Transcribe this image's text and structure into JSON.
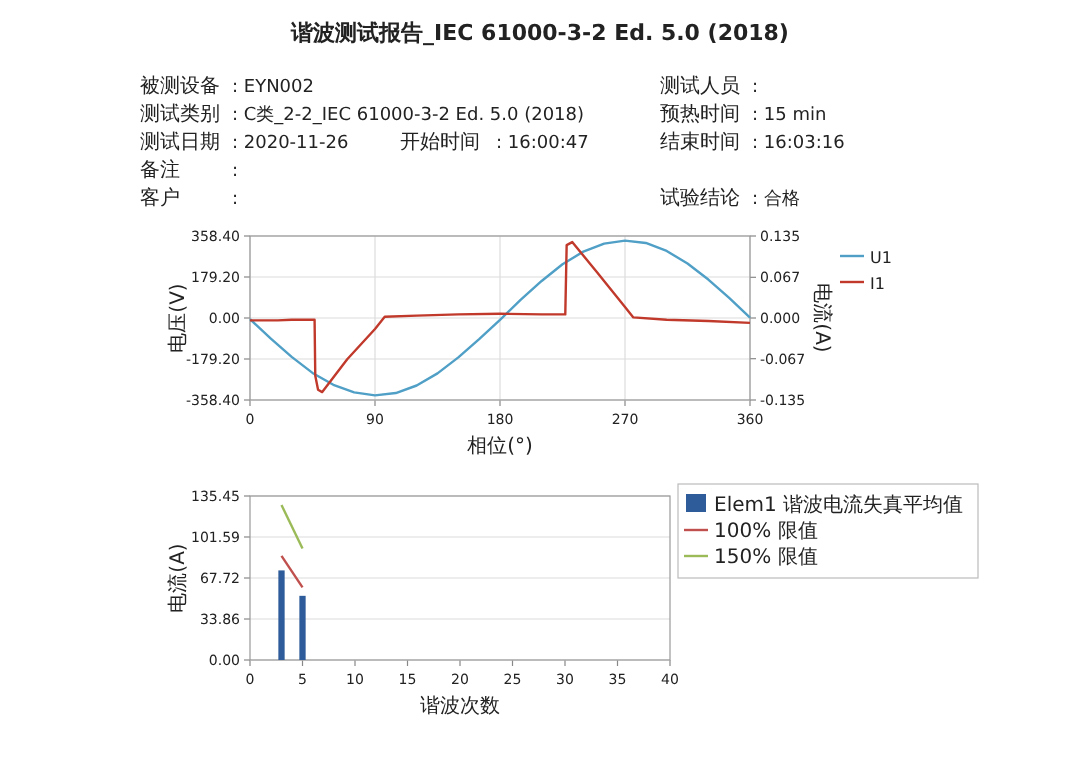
{
  "chart_data": [
    {
      "type": "other",
      "title": "谐波测试报告_IEC 61000-3-2 Ed. 5.0 (2018)",
      "annotations": [
        "被测设备",
        ": EYN002",
        "测试人员",
        ":",
        "测试类别",
        ": C类_2-2_IEC 61000-3-2 Ed. 5.0 (2018)",
        "预热时间",
        ": 15 min",
        "测试日期",
        ": 2020-11-26",
        "开始时间",
        ": 16:00:47",
        "结束时间",
        ": 16:03:16",
        "备注",
        ":",
        "客户",
        ":",
        "试验结论",
        ": 合格"
      ]
    },
    {
      "type": "line",
      "xlabel": "相位(°)",
      "ylabel": "电压(V)",
      "y2label": "电流(A)",
      "xlim": [
        0,
        360
      ],
      "xticks": [
        0,
        90,
        180,
        270,
        360
      ],
      "ylim": [
        -358.4,
        358.4
      ],
      "yticks": [
        {
          "value": -358.4,
          "label": "-358.40"
        },
        {
          "value": -179.2,
          "label": "-179.20"
        },
        {
          "value": 0,
          "label": "0.00"
        },
        {
          "value": 179.2,
          "label": "179.20"
        },
        {
          "value": 358.4,
          "label": "358.40"
        }
      ],
      "y2lim": [
        -0.135,
        0.135
      ],
      "y2ticks": [
        -0.135,
        -0.067,
        {
          "value": 0,
          "label": "0.000"
        },
        0.067,
        0.135
      ],
      "grid": true,
      "legend": "top right",
      "series": [
        {
          "name": "U1",
          "color": "#4f9fc6",
          "x": [
            0,
            15,
            30,
            45,
            60,
            75,
            90,
            105,
            120,
            135,
            150,
            165,
            180,
            195,
            210,
            225,
            240,
            255,
            270,
            285,
            300,
            315,
            330,
            345,
            360
          ],
          "values": [
            -5,
            -90,
            -170,
            -240,
            -292,
            -325,
            -338,
            -328,
            -295,
            -242,
            -172,
            -92,
            -8,
            80,
            162,
            235,
            290,
            325,
            338,
            328,
            293,
            238,
            168,
            88,
            2
          ]
        },
        {
          "name": "I1",
          "color": "#c0392b",
          "axis": "y2",
          "x": [
            0,
            10,
            20,
            30,
            40,
            46.5,
            47,
            49,
            52,
            70,
            90,
            97,
            120,
            150,
            180,
            210,
            227,
            228,
            232,
            250,
            270,
            276,
            300,
            330,
            360
          ],
          "values": [
            -0.004,
            -0.004,
            -0.004,
            -0.003,
            -0.003,
            -0.003,
            -0.095,
            -0.118,
            -0.122,
            -0.068,
            -0.018,
            0.002,
            0.004,
            0.006,
            0.007,
            0.006,
            0.006,
            0.12,
            0.125,
            0.075,
            0.018,
            0.001,
            -0.003,
            -0.005,
            -0.008
          ]
        }
      ]
    },
    {
      "type": "bar",
      "xlabel": "谐波次数",
      "ylabel": "电流(A)",
      "xlim": [
        0,
        40
      ],
      "xticks": [
        0,
        5,
        10,
        15,
        20,
        25,
        30,
        35,
        40
      ],
      "ylim": [
        0,
        135.45
      ],
      "yticks": [
        {
          "value": 0,
          "label": "0.00"
        },
        33.86,
        67.72,
        101.59,
        135.45
      ],
      "grid": "y",
      "legend": "right",
      "series": [
        {
          "name": "Elem1 谐波电流失真平均值",
          "color": "#2e5c9a",
          "x": [
            3,
            5
          ],
          "values": [
            74,
            53
          ]
        },
        {
          "name": "100% 限值",
          "type": "line",
          "color": "#c0504d",
          "x": [
            3,
            5
          ],
          "values": [
            86,
            60
          ]
        },
        {
          "name": "150% 限值",
          "type": "line",
          "color": "#9bbb59",
          "x": [
            3,
            5
          ],
          "values": [
            128,
            92
          ]
        }
      ]
    }
  ]
}
